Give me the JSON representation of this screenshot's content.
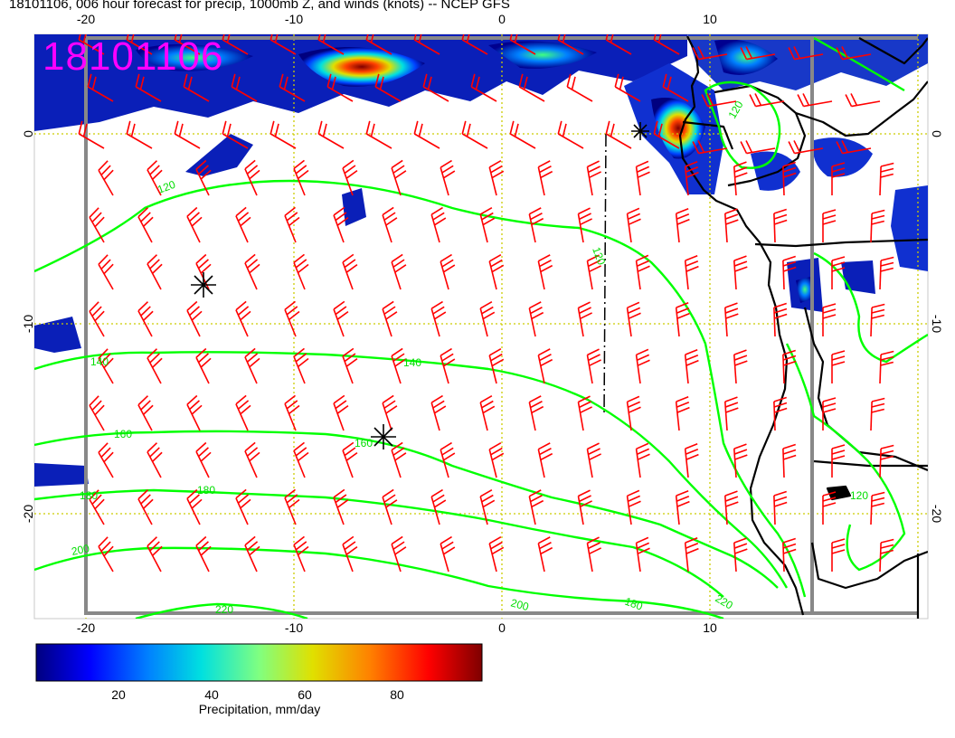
{
  "title": "18101106, 006 hour forecast for precip, 1000mb Z, and winds (knots) -- NCEP GFS",
  "stamp": "18101106",
  "map": {
    "lon_ticks": [
      "-20",
      "-10",
      "0",
      "10"
    ],
    "lat_ticks": [
      "0",
      "-10",
      "-20"
    ],
    "contour_labels": [
      "120",
      "120",
      "140",
      "140",
      "160",
      "160",
      "180",
      "180",
      "180",
      "200",
      "200",
      "220",
      "220",
      "120",
      "120"
    ]
  },
  "colorbar": {
    "title": "Precipitation, mm/day",
    "labels": [
      "20",
      "40",
      "60",
      "80"
    ],
    "colors": [
      "#00007f",
      "#0000ff",
      "#0080ff",
      "#00e0e0",
      "#80ff80",
      "#e0e000",
      "#ff8000",
      "#ff0000",
      "#7f0000"
    ]
  },
  "colors": {
    "wind_barbs": "#ff0000",
    "contours": "#00ff00",
    "grid": "#cccc00",
    "stamp": "#ff00ff"
  }
}
